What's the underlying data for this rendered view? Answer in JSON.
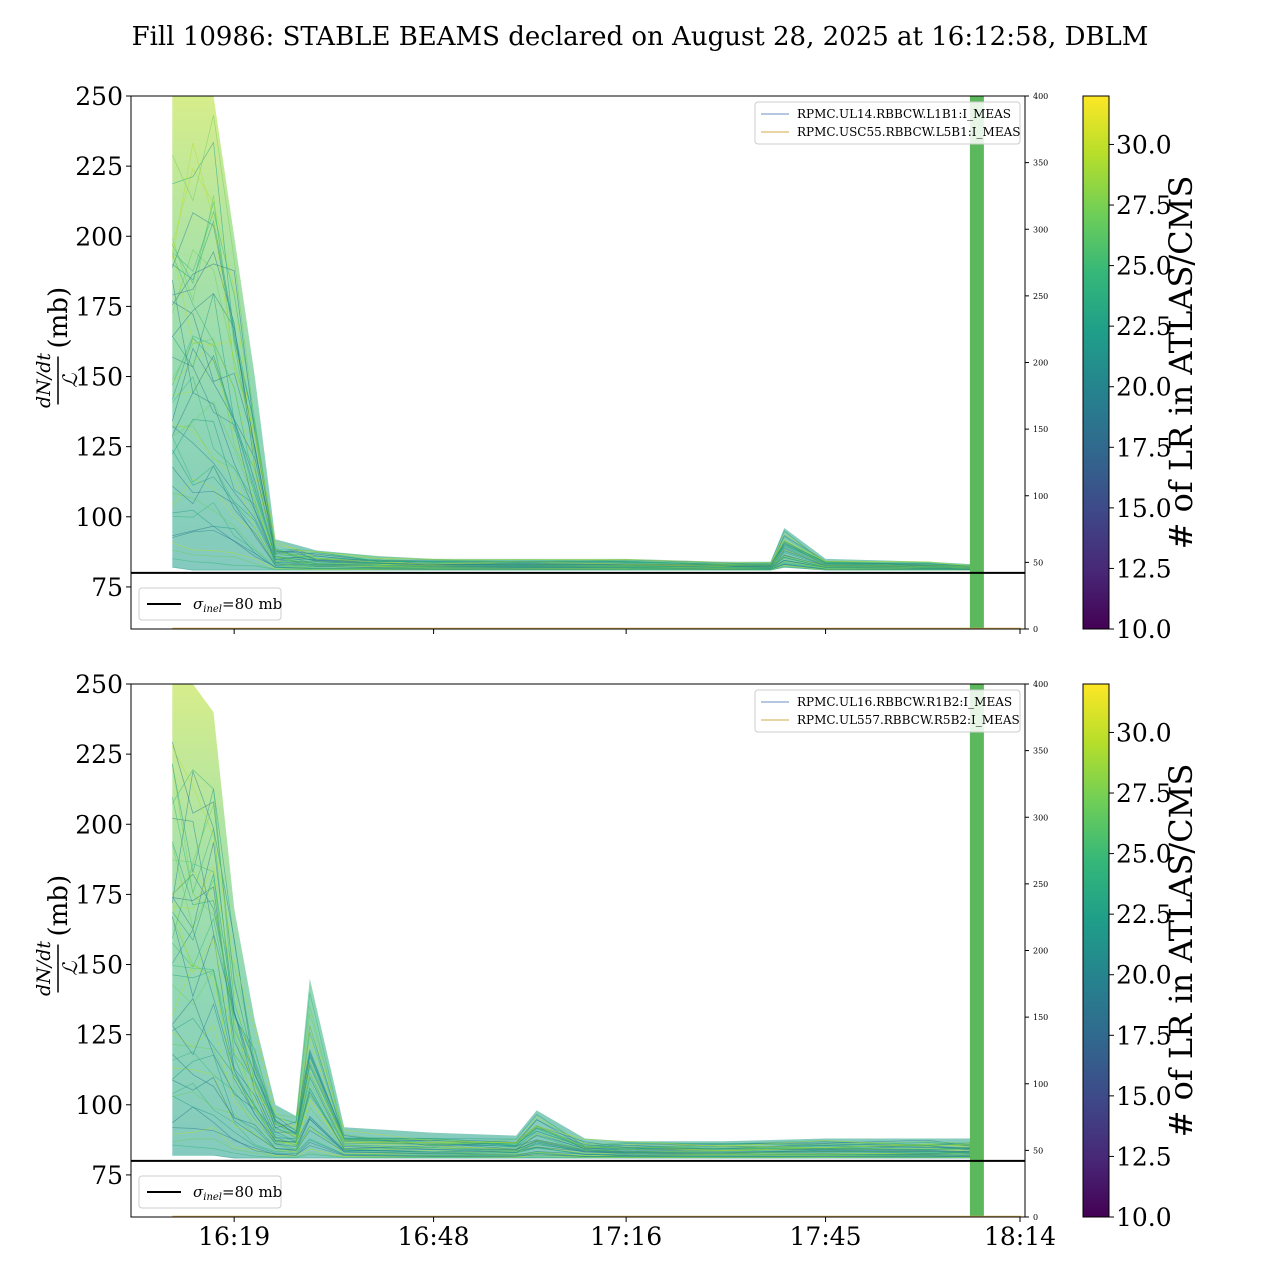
{
  "figure": {
    "title": "Fill 10986: STABLE BEAMS declared on August 28, 2025 at 16:12:58, DBLM"
  },
  "colors": {
    "beam1_line": "#6a8fc0",
    "beam2_line": "#d4a94a",
    "stable_band": "#5cb85c",
    "sigma_line": "#000000",
    "viridis": [
      "#440154",
      "#482878",
      "#3e4989",
      "#31688e",
      "#26828e",
      "#1f9e89",
      "#35b779",
      "#6ece58",
      "#b5de2b",
      "#fde725"
    ]
  },
  "chart_data": [
    {
      "type": "line",
      "panel": "top",
      "ylabel": "dN/dt / ℒ (mb)",
      "ylabel_num": "dN/dt",
      "ylabel_den": "ℒ",
      "ylabel_unit": "(mb)",
      "ylim": [
        60,
        250
      ],
      "yticks": [
        75,
        100,
        125,
        150,
        175,
        200,
        225,
        250
      ],
      "xlim": [
        "16:04",
        "18:14"
      ],
      "xticks": [
        "16:19",
        "16:48",
        "17:16",
        "17:45",
        "18:14"
      ],
      "y2lim": [
        0,
        400
      ],
      "y2ticks": [
        0,
        50,
        100,
        150,
        200,
        250,
        300,
        350,
        400
      ],
      "colorbar": {
        "label": "# of LR in ATLAS/CMS",
        "range": [
          10,
          32
        ],
        "ticks": [
          "10.0",
          "12.5",
          "15.0",
          "17.5",
          "20.0",
          "22.5",
          "25.0",
          "27.5",
          "30.0"
        ]
      },
      "legend_series": [
        {
          "name": "RPMC.UL14.RBBCW.L1B1:I_MEAS",
          "color": "#6a8fc0"
        },
        {
          "name": "RPMC.USC55.RBBCW.L5B1:I_MEAS",
          "color": "#d4a94a"
        }
      ],
      "sigma_legend": {
        "prefix": "σ",
        "sub": "inel",
        "suffix": "=80 mb",
        "value": 80
      },
      "stable_band_time": "18:07",
      "envelope": {
        "times": [
          "16:10",
          "16:13",
          "16:16",
          "16:19",
          "16:22",
          "16:25",
          "16:28",
          "16:31",
          "16:40",
          "16:48",
          "17:00",
          "17:16",
          "17:30",
          "17:37",
          "17:39",
          "17:45",
          "18:00",
          "18:07"
        ],
        "upper": [
          250,
          250,
          250,
          200,
          150,
          92,
          90,
          88,
          86,
          85,
          85,
          85,
          84,
          84,
          96,
          85,
          84,
          83
        ],
        "lower": [
          82,
          81,
          81,
          81,
          81,
          81,
          81,
          81,
          81,
          81,
          81,
          81,
          81,
          81,
          82,
          81,
          81,
          81
        ]
      }
    },
    {
      "type": "line",
      "panel": "bottom",
      "ylabel": "dN/dt / ℒ (mb)",
      "ylabel_num": "dN/dt",
      "ylabel_den": "ℒ",
      "ylabel_unit": "(mb)",
      "ylim": [
        60,
        250
      ],
      "yticks": [
        75,
        100,
        125,
        150,
        175,
        200,
        225,
        250
      ],
      "xlim": [
        "16:04",
        "18:14"
      ],
      "xticks": [
        "16:19",
        "16:48",
        "17:16",
        "17:45",
        "18:14"
      ],
      "y2lim": [
        0,
        400
      ],
      "y2ticks": [
        0,
        50,
        100,
        150,
        200,
        250,
        300,
        350,
        400
      ],
      "colorbar": {
        "label": "# of LR in ATLAS/CMS",
        "range": [
          10,
          32
        ],
        "ticks": [
          "10.0",
          "12.5",
          "15.0",
          "17.5",
          "20.0",
          "22.5",
          "25.0",
          "27.5",
          "30.0"
        ]
      },
      "legend_series": [
        {
          "name": "RPMC.UL16.RBBCW.R1B2:I_MEAS",
          "color": "#6a8fc0"
        },
        {
          "name": "RPMC.UL557.RBBCW.R5B2:I_MEAS",
          "color": "#d4a94a"
        }
      ],
      "sigma_legend": {
        "prefix": "σ",
        "sub": "inel",
        "suffix": "=80 mb",
        "value": 80
      },
      "stable_band_time": "18:07",
      "envelope": {
        "times": [
          "16:10",
          "16:13",
          "16:16",
          "16:19",
          "16:22",
          "16:25",
          "16:28",
          "16:30",
          "16:35",
          "16:48",
          "17:00",
          "17:03",
          "17:10",
          "17:16",
          "17:30",
          "17:45",
          "18:00",
          "18:07"
        ],
        "upper": [
          250,
          250,
          240,
          170,
          130,
          100,
          96,
          145,
          92,
          90,
          89,
          98,
          88,
          87,
          87,
          88,
          88,
          88
        ],
        "lower": [
          82,
          82,
          82,
          81,
          81,
          81,
          81,
          81,
          81,
          81,
          81,
          81,
          81,
          81,
          81,
          81,
          81,
          81
        ]
      }
    }
  ]
}
